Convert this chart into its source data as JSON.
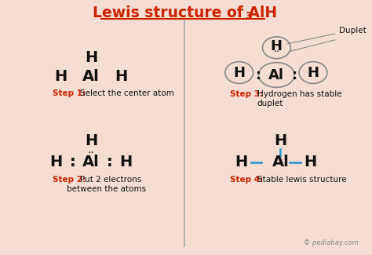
{
  "title_main": "Lewis structure of AlH",
  "title_subscript": "3",
  "bg_color": "#f5ddd4",
  "title_color": "#cc2200",
  "title_underline_color": "#cc2200",
  "step_label_color": "#cc2200",
  "text_color": "#111111",
  "divider_color": "#aaaaaa",
  "bond_color": "#3399cc",
  "step1_label": "Step 1:",
  "step1_desc": "Select the center atom",
  "step2_label": "Step 2:",
  "step2_desc1": "Put 2 electrons",
  "step2_desc2": "between the atoms",
  "step3_label": "Step 3:",
  "step3_desc1": "Hydrogen has stable",
  "step3_desc2": "duplet",
  "step4_label": "Step 4:",
  "step4_desc": "Stable lewis structure",
  "watermark": "© pediabay.com"
}
